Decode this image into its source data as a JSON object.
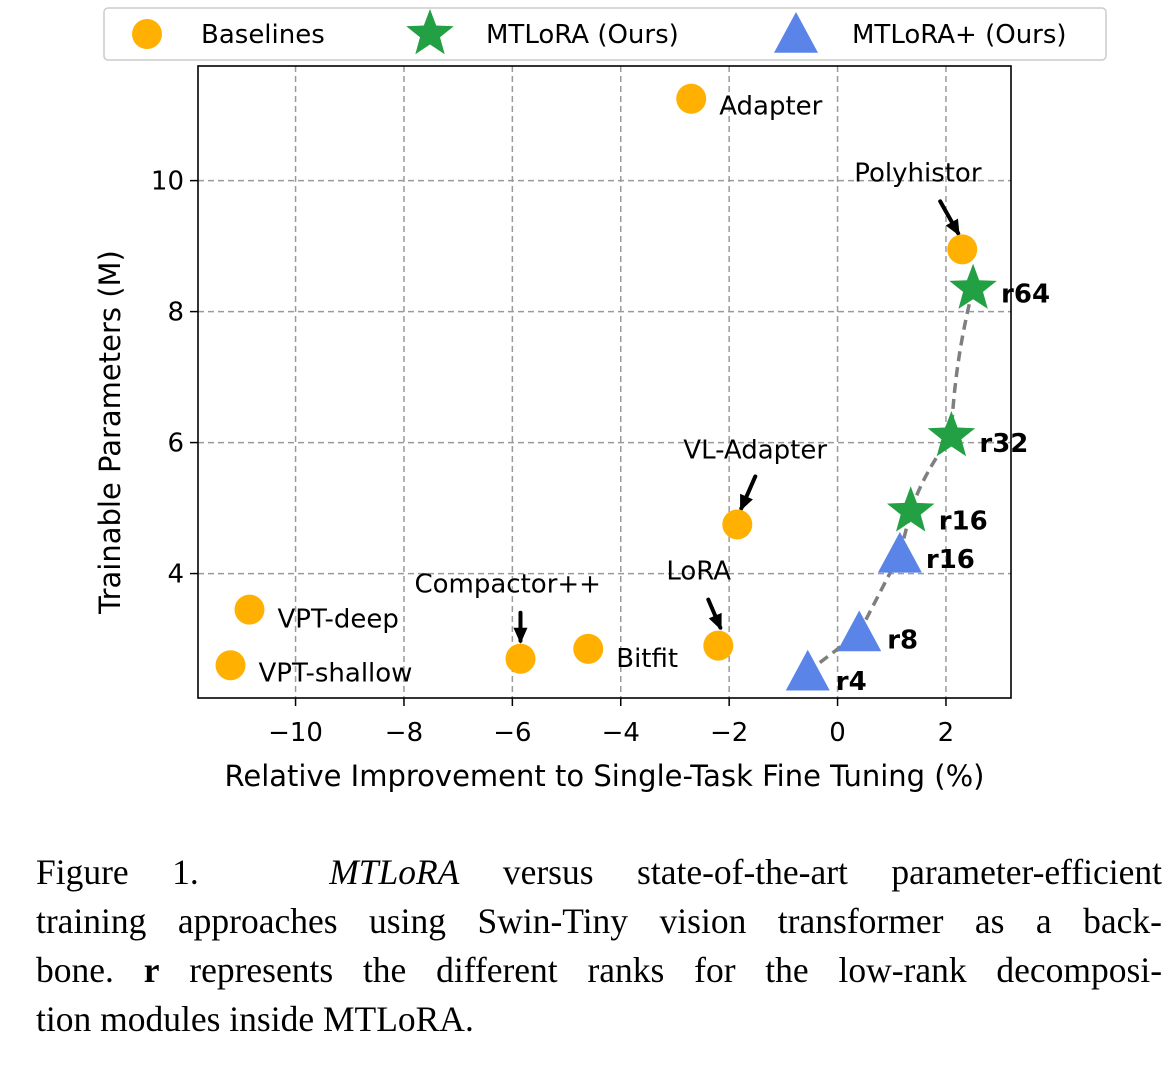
{
  "chart_data": {
    "type": "scatter",
    "xlabel": "Relative Improvement to Single-Task Fine Tuning (%)",
    "ylabel": "Trainable Parameters (M)",
    "xlim": [
      -11.8,
      3.2
    ],
    "ylim": [
      2.1,
      11.75
    ],
    "xticks": [
      -10,
      -8,
      -6,
      -4,
      -2,
      0,
      2
    ],
    "xtick_labels": [
      "−10",
      "−8",
      "−6",
      "−4",
      "−2",
      "0",
      "2"
    ],
    "yticks": [
      4,
      6,
      8,
      10
    ],
    "ytick_labels": [
      "4",
      "6",
      "8",
      "10"
    ],
    "grid": true,
    "legend_position": "top",
    "series": [
      {
        "name": "Baselines",
        "marker": "circle",
        "color": "#ffb000",
        "points": [
          {
            "label": "Adapter",
            "x": -2.7,
            "y": 11.25
          },
          {
            "label": "Polyhistor",
            "x": 2.3,
            "y": 8.95
          },
          {
            "label": "VL-Adapter",
            "x": -1.85,
            "y": 4.75
          },
          {
            "label": "VPT-deep",
            "x": -10.85,
            "y": 3.45
          },
          {
            "label": "VPT-shallow",
            "x": -11.2,
            "y": 2.6
          },
          {
            "label": "Compactor++",
            "x": -5.85,
            "y": 2.7
          },
          {
            "label": "Bitfit",
            "x": -4.6,
            "y": 2.85
          },
          {
            "label": "LoRA",
            "x": -2.2,
            "y": 2.9
          }
        ]
      },
      {
        "name": "MTLoRA (Ours)",
        "marker": "star",
        "color": "#23a043",
        "points": [
          {
            "label": "r64",
            "x": 2.5,
            "y": 8.35
          },
          {
            "label": "r32",
            "x": 2.1,
            "y": 6.1
          },
          {
            "label": "r16",
            "x": 1.35,
            "y": 4.95
          }
        ]
      },
      {
        "name": "MTLoRA+ (Ours)",
        "marker": "triangle",
        "color": "#5b84e8",
        "points": [
          {
            "label": "r16",
            "x": 1.15,
            "y": 4.3
          },
          {
            "label": "r8",
            "x": 0.4,
            "y": 3.1
          },
          {
            "label": "r4",
            "x": -0.55,
            "y": 2.5
          }
        ]
      }
    ]
  },
  "caption": {
    "fig_num": "Figure 1.",
    "method": "MTLoRA",
    "line1_rest": "versus state-of-the-art parameter-efficient",
    "line2": "training approaches using Swin-Tiny vision transformer as a back-",
    "line3_start": "bone.",
    "line3_bold": "r",
    "line3_rest": "represents the different ranks for the low-rank decomposi-",
    "line4": "tion modules inside MTLoRA."
  }
}
